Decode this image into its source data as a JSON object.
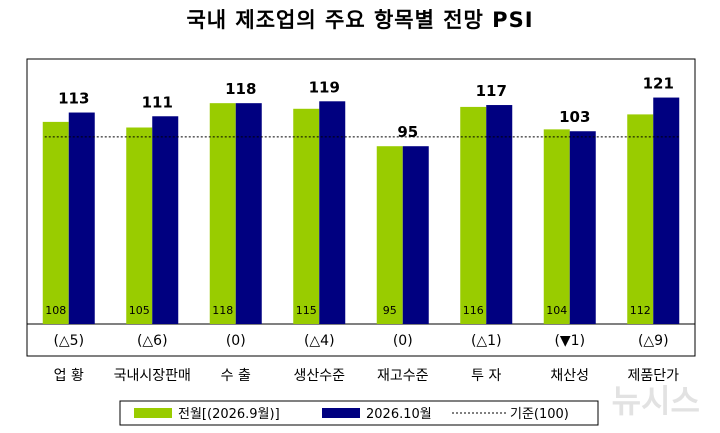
{
  "chart_data": {
    "type": "bar",
    "title": "국내 제조업의 주요 항목별 전망 PSI",
    "categories": [
      "업 황",
      "국내시장판매",
      "수 출",
      "생산수준",
      "재고수준",
      "투 자",
      "채산성",
      "제품단가"
    ],
    "changes": [
      "(△5)",
      "(△6)",
      "(0)",
      "(△4)",
      "(0)",
      "(△1)",
      "(▼1)",
      "(△9)"
    ],
    "series": [
      {
        "name": "전월[(2026.9월)]",
        "color": "#99cc00",
        "values": [
          108,
          105,
          118,
          115,
          95,
          116,
          104,
          112
        ]
      },
      {
        "name": "2026.10월",
        "color": "#000080",
        "values": [
          113,
          111,
          118,
          119,
          95,
          117,
          103,
          121
        ]
      }
    ],
    "reference": {
      "name": "기준(100)",
      "value": 100
    },
    "ylim": [
      0,
      140
    ],
    "grid": false,
    "legend_position": "bottom",
    "watermark": "뉴시스"
  }
}
